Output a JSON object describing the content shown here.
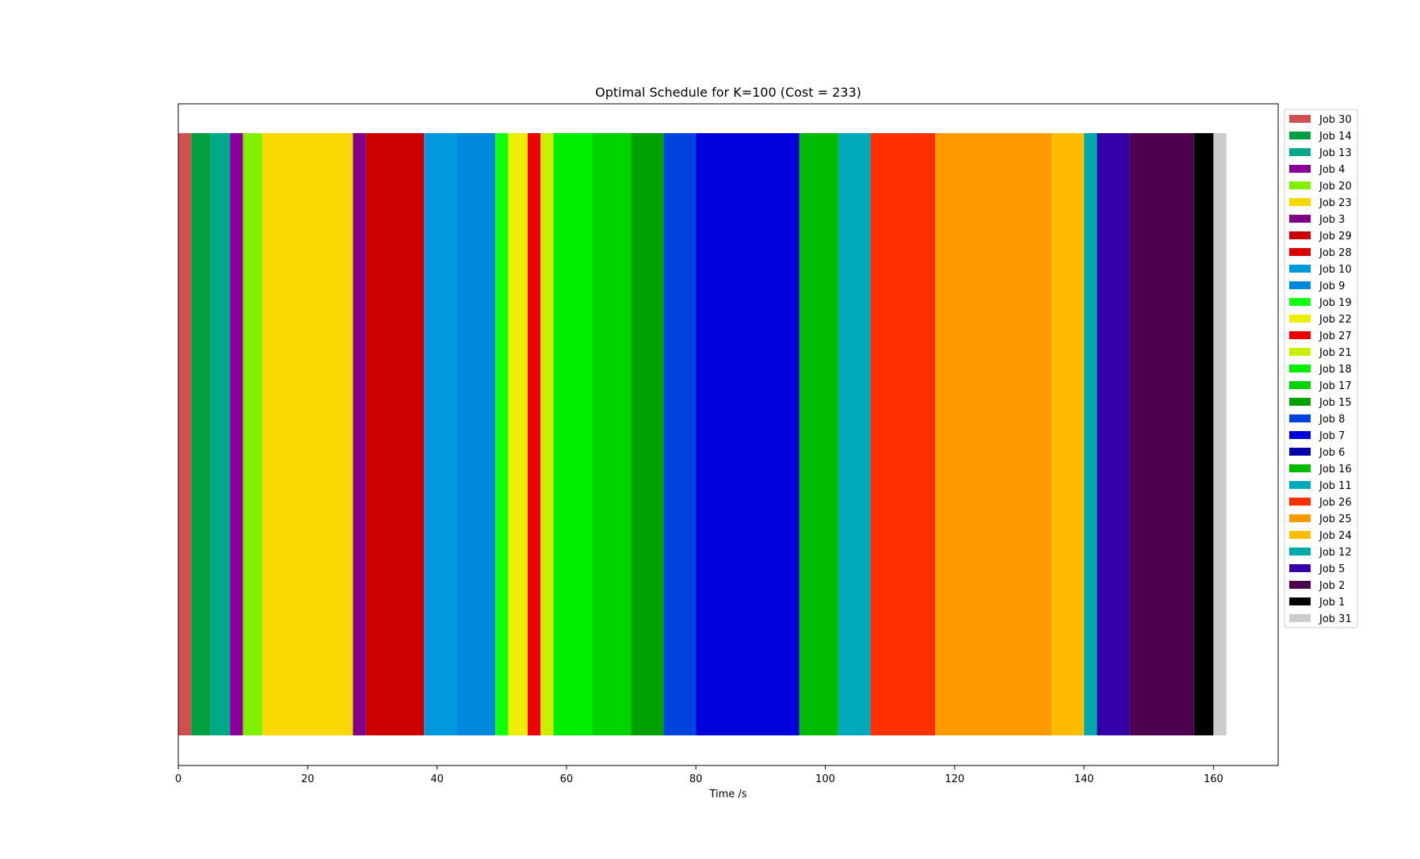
{
  "chart_data": {
    "type": "bar",
    "orientation": "horizontal-stacked",
    "title": "Optimal Schedule for K=100 (Cost = 233)",
    "xlabel": "Time /s",
    "ylabel": "",
    "xlim": [
      0,
      170
    ],
    "xticks": [
      0,
      20,
      40,
      60,
      80,
      100,
      120,
      140,
      160
    ],
    "grid": false,
    "legend_position": "right",
    "series": [
      {
        "name": "Job 30",
        "start": 0,
        "end": 2,
        "color": "#d05050"
      },
      {
        "name": "Job 14",
        "start": 2,
        "end": 5,
        "color": "#00a040"
      },
      {
        "name": "Job 13",
        "start": 5,
        "end": 8,
        "color": "#00aa88"
      },
      {
        "name": "Job 4",
        "start": 8,
        "end": 10,
        "color": "#880099"
      },
      {
        "name": "Job 20",
        "start": 10,
        "end": 13,
        "color": "#80f000"
      },
      {
        "name": "Job 23",
        "start": 13,
        "end": 27,
        "color": "#f8d800"
      },
      {
        "name": "Job 3",
        "start": 27,
        "end": 29,
        "color": "#800088"
      },
      {
        "name": "Job 29",
        "start": 29,
        "end": 38,
        "color": "#cc0000"
      },
      {
        "name": "Job 28",
        "start": 38,
        "end": 38,
        "color": "#dd0000"
      },
      {
        "name": "Job 10",
        "start": 38,
        "end": 43,
        "color": "#0099dd"
      },
      {
        "name": "Job 9",
        "start": 43,
        "end": 49,
        "color": "#0088dd"
      },
      {
        "name": "Job 19",
        "start": 49,
        "end": 51,
        "color": "#11ff11"
      },
      {
        "name": "Job 22",
        "start": 51,
        "end": 54,
        "color": "#eeee00"
      },
      {
        "name": "Job 27",
        "start": 54,
        "end": 56,
        "color": "#ee0000"
      },
      {
        "name": "Job 21",
        "start": 56,
        "end": 58,
        "color": "#ccee00"
      },
      {
        "name": "Job 18",
        "start": 58,
        "end": 64,
        "color": "#00ee00"
      },
      {
        "name": "Job 17",
        "start": 64,
        "end": 70,
        "color": "#00d400"
      },
      {
        "name": "Job 15",
        "start": 70,
        "end": 75,
        "color": "#00a000"
      },
      {
        "name": "Job 8",
        "start": 75,
        "end": 80,
        "color": "#0044dd"
      },
      {
        "name": "Job 7",
        "start": 80,
        "end": 96,
        "color": "#0000dd"
      },
      {
        "name": "Job 6",
        "start": 96,
        "end": 96,
        "color": "#0000aa"
      },
      {
        "name": "Job 16",
        "start": 96,
        "end": 102,
        "color": "#00bb00"
      },
      {
        "name": "Job 11",
        "start": 102,
        "end": 107,
        "color": "#00aabb"
      },
      {
        "name": "Job 26",
        "start": 107,
        "end": 117,
        "color": "#ff3000"
      },
      {
        "name": "Job 25",
        "start": 117,
        "end": 135,
        "color": "#ff9900"
      },
      {
        "name": "Job 24",
        "start": 135,
        "end": 140,
        "color": "#ffbb00"
      },
      {
        "name": "Job 12",
        "start": 140,
        "end": 142,
        "color": "#00aaaa"
      },
      {
        "name": "Job 5",
        "start": 142,
        "end": 147,
        "color": "#3300aa"
      },
      {
        "name": "Job 2",
        "start": 147,
        "end": 157,
        "color": "#4d0050"
      },
      {
        "name": "Job 1",
        "start": 157,
        "end": 160,
        "color": "#000000"
      },
      {
        "name": "Job 31",
        "start": 160,
        "end": 162,
        "color": "#cccccc"
      }
    ]
  }
}
